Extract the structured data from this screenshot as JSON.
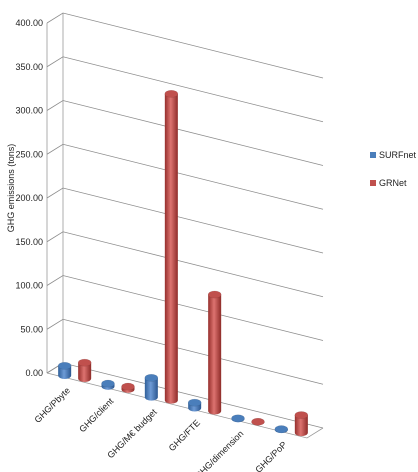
{
  "chart_data": {
    "type": "bar",
    "ylabel": "GHG emissions  (tons)",
    "ylim": [
      0,
      400
    ],
    "ytick_labels": [
      "0.00",
      "50.00",
      "100.00",
      "150.00",
      "200.00",
      "250.00",
      "300.00",
      "350.00",
      "400.00"
    ],
    "categories": [
      "GHG/Pbyte",
      "GHG/client",
      "GHG/M€ budget",
      "GHG/FTE",
      "GHG/dimension",
      "GHG/PoP"
    ],
    "series": [
      {
        "name": "SURFnet",
        "color": "#4a7ebb",
        "values": [
          11,
          3,
          22,
          6,
          0.5,
          0.5
        ]
      },
      {
        "name": "GRNet",
        "color": "#c0504d",
        "values": [
          18,
          3,
          350,
          133,
          0,
          20
        ]
      }
    ],
    "legend_position": "right",
    "grid": true,
    "style": "3d-cylinder"
  }
}
